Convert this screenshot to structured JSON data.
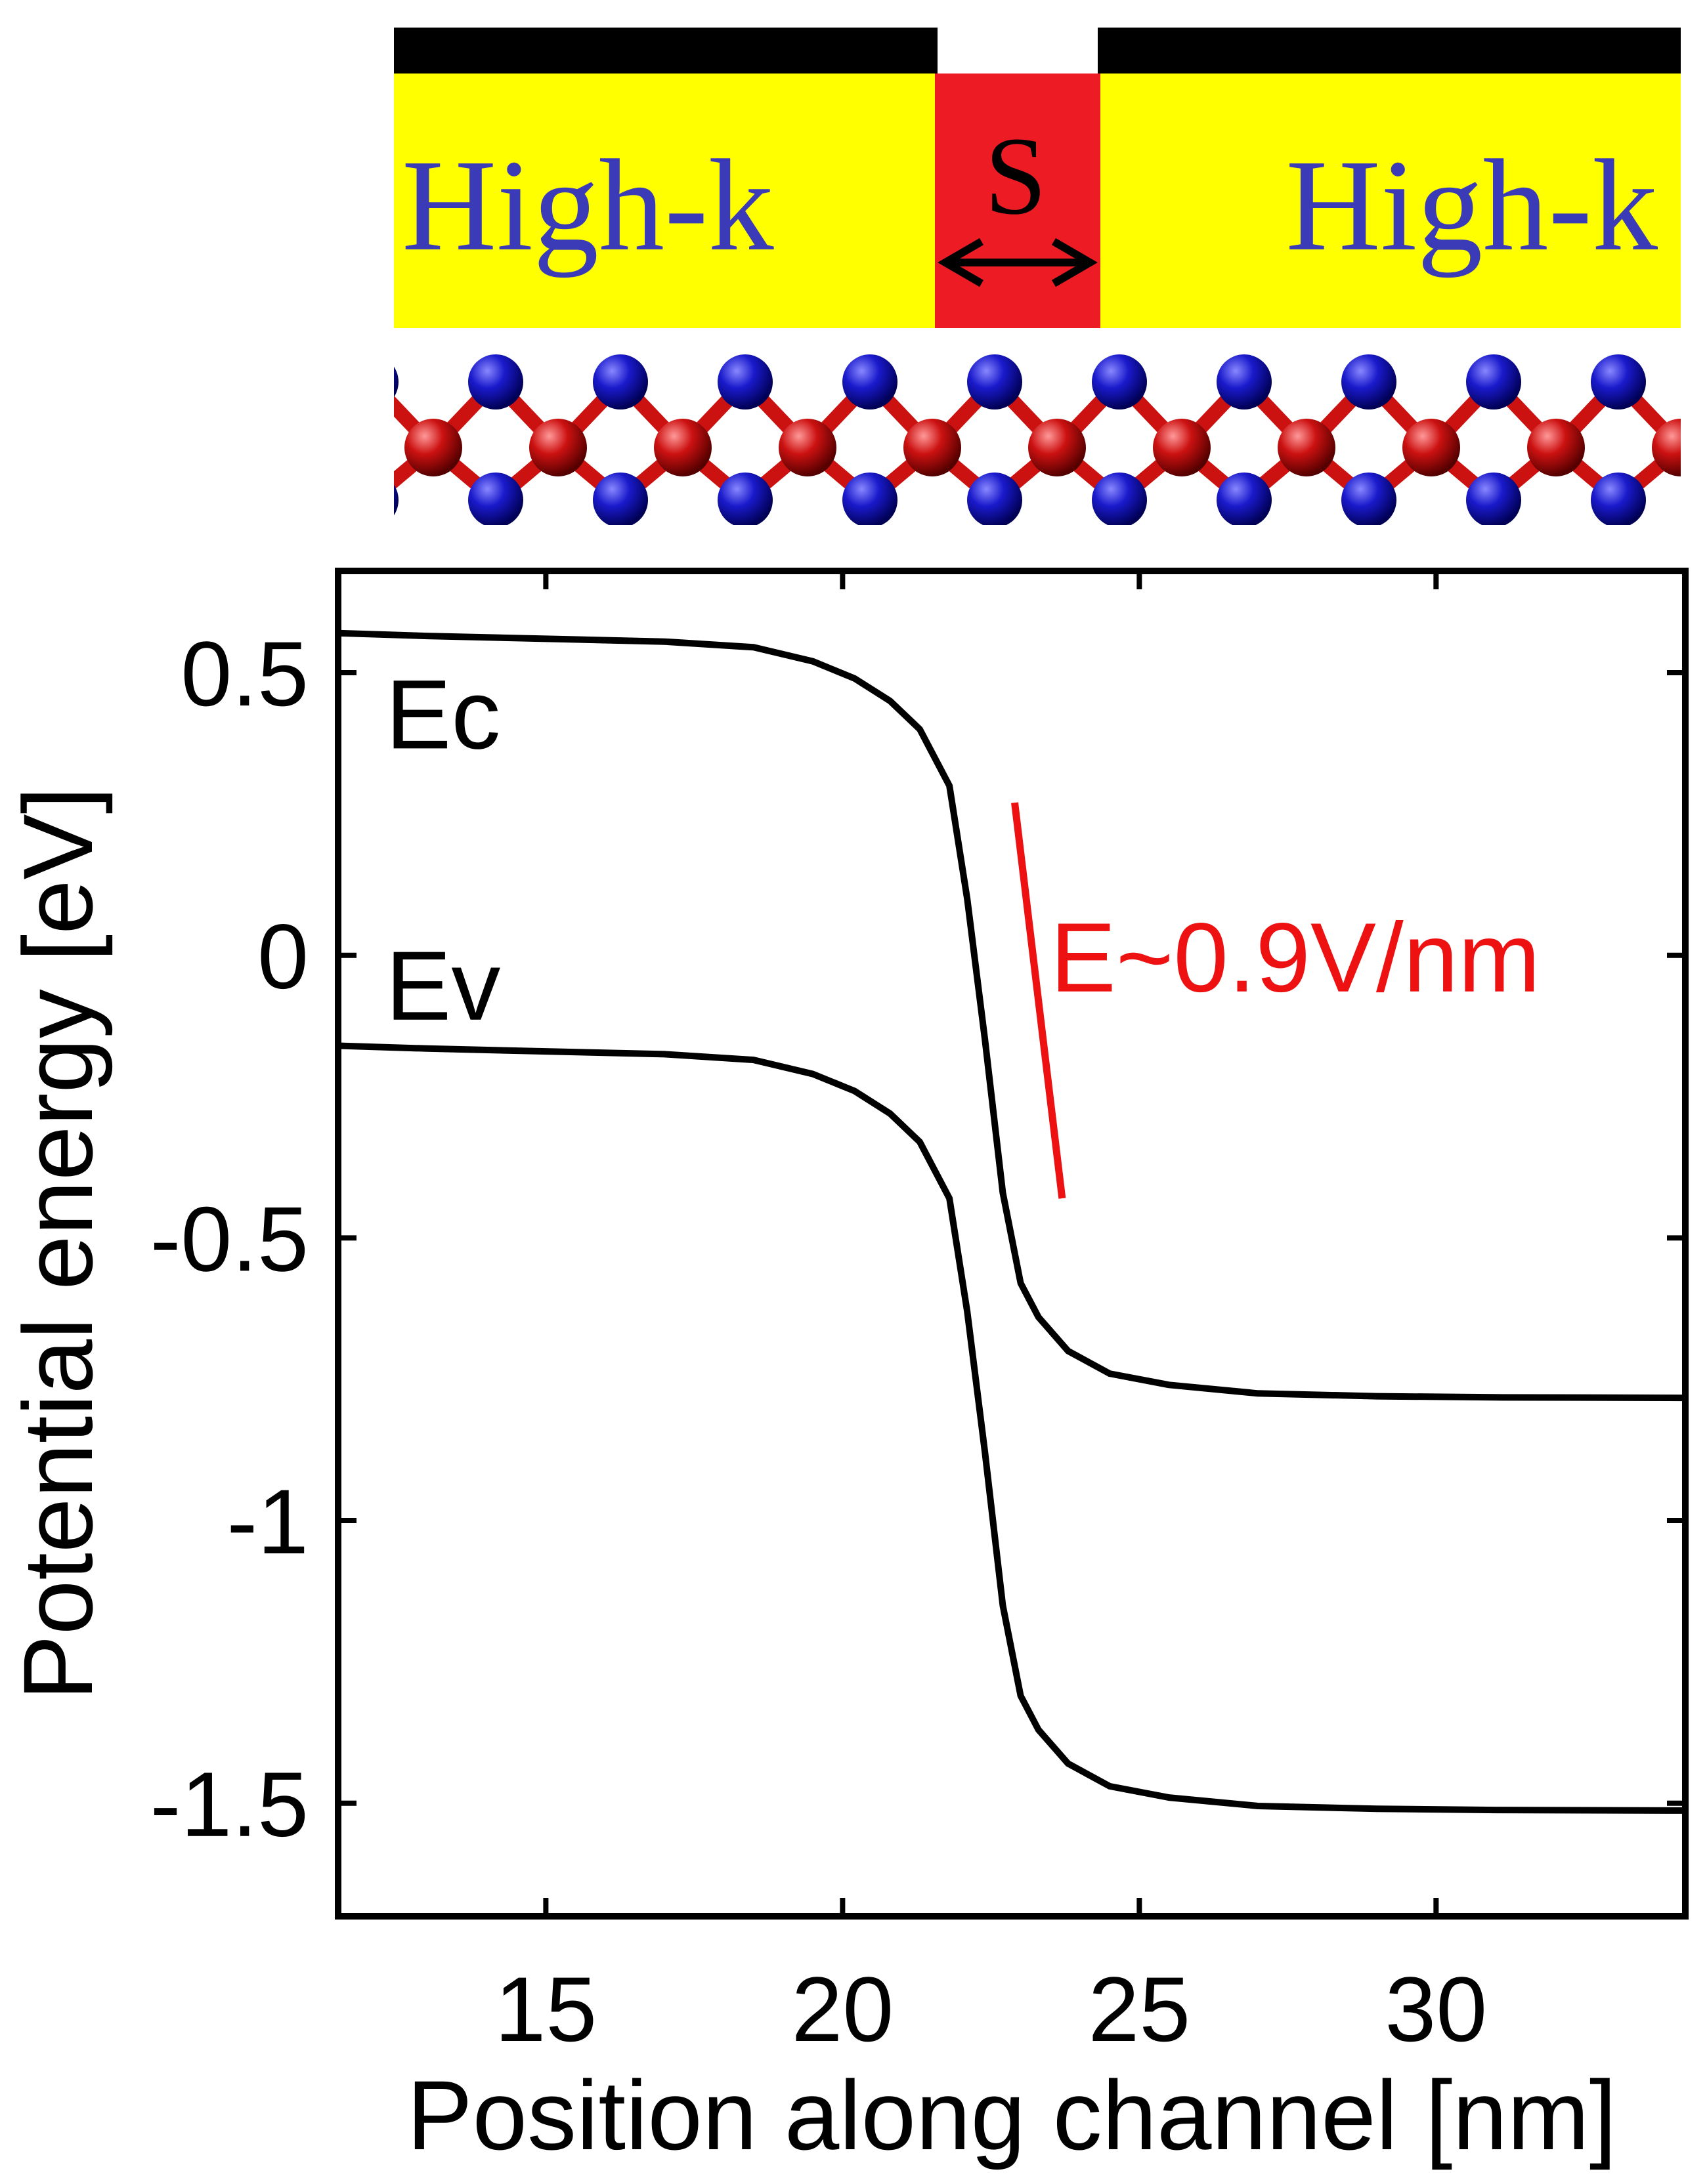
{
  "device": {
    "left_region_label": "High-k",
    "right_region_label": "High-k",
    "spacer_label": "S",
    "colors": {
      "gate_metal": "#000000",
      "high_k": "#ffff00",
      "spacer": "#ed1c24",
      "label": "#3b3bb8",
      "atom_metal": "#cc1111",
      "atom_chalcogen": "#1a1acc",
      "bond": "#cc1111"
    }
  },
  "chart_data": {
    "type": "line",
    "title": "",
    "xlabel": "Position along channel [nm]",
    "ylabel": "Potential energy [eV]",
    "xlim": [
      11.5,
      34.2
    ],
    "ylim": [
      -1.7,
      0.68
    ],
    "xticks": [
      15,
      20,
      25,
      30
    ],
    "yticks": [
      0.5,
      0,
      -0.5,
      -1,
      -1.5
    ],
    "xtick_labels": [
      "15",
      "20",
      "25",
      "30"
    ],
    "ytick_labels": [
      "0.5",
      "0",
      "-0.5",
      "-1",
      "-1.5"
    ],
    "grid": false,
    "series": [
      {
        "name": "Ec",
        "color": "#000000",
        "x": [
          11.5,
          13,
          15,
          17,
          18.5,
          19.5,
          20.2,
          20.8,
          21.3,
          21.8,
          22.1,
          22.4,
          22.7,
          23.0,
          23.3,
          23.8,
          24.5,
          25.5,
          27,
          29,
          31,
          34.2
        ],
        "y": [
          0.57,
          0.565,
          0.56,
          0.555,
          0.545,
          0.52,
          0.49,
          0.45,
          0.4,
          0.3,
          0.1,
          -0.15,
          -0.42,
          -0.58,
          -0.64,
          -0.7,
          -0.74,
          -0.76,
          -0.775,
          -0.78,
          -0.782,
          -0.783
        ]
      },
      {
        "name": "Ev",
        "color": "#000000",
        "x": [
          11.5,
          13,
          15,
          17,
          18.5,
          19.5,
          20.2,
          20.8,
          21.3,
          21.8,
          22.1,
          22.4,
          22.7,
          23.0,
          23.3,
          23.8,
          24.5,
          25.5,
          27,
          29,
          31,
          34.2
        ],
        "y": [
          -0.16,
          -0.165,
          -0.17,
          -0.175,
          -0.185,
          -0.21,
          -0.24,
          -0.28,
          -0.33,
          -0.43,
          -0.63,
          -0.88,
          -1.15,
          -1.31,
          -1.37,
          -1.43,
          -1.47,
          -1.49,
          -1.505,
          -1.51,
          -1.512,
          -1.513
        ]
      }
    ],
    "annotations": [
      {
        "text": "Ec",
        "x": 12.3,
        "y": 0.43,
        "color": "#000000"
      },
      {
        "text": "Ev",
        "x": 12.3,
        "y": -0.05,
        "color": "#000000"
      },
      {
        "text": "E~0.9V/nm",
        "x": 23.5,
        "y": 0.0,
        "color": "#ee1111"
      }
    ],
    "field_line": {
      "x": [
        22.9,
        23.7
      ],
      "y": [
        0.27,
        -0.43
      ],
      "color": "#ee1111"
    }
  }
}
